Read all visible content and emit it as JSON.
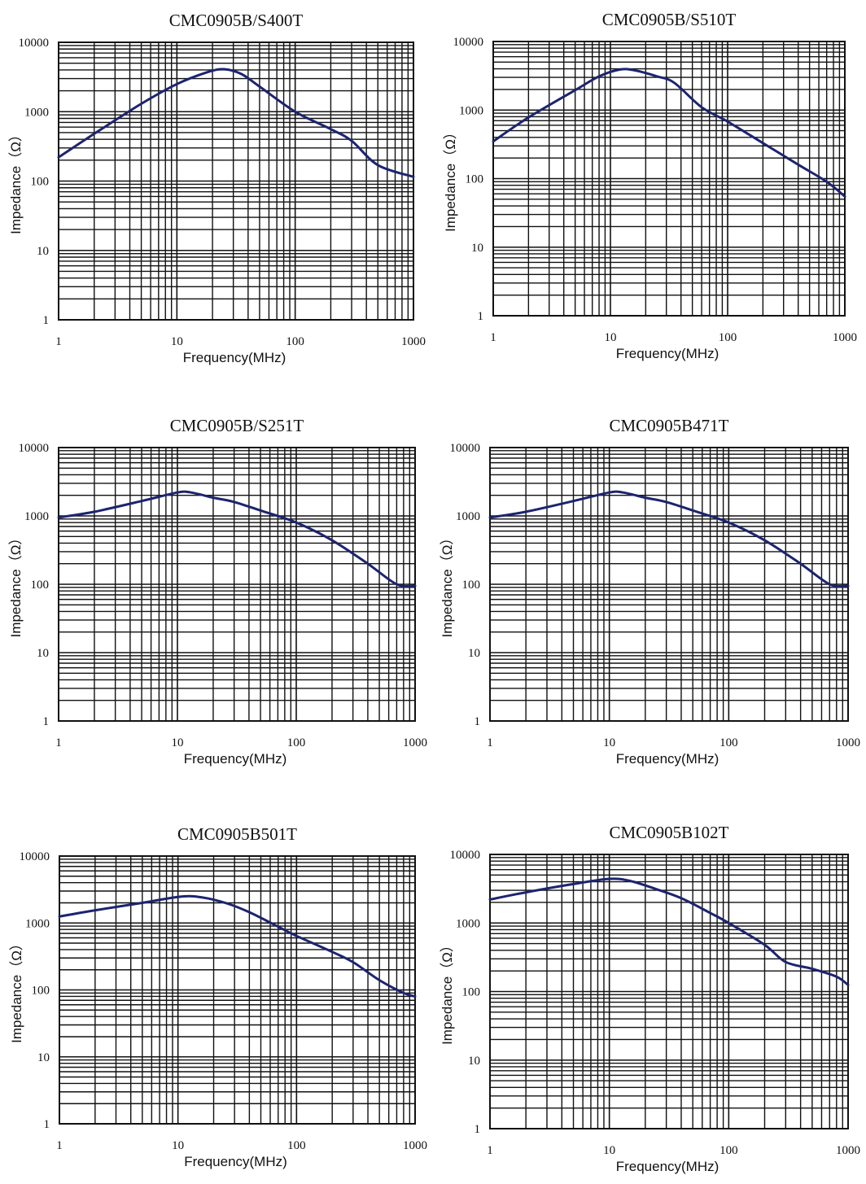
{
  "chart_data": [
    {
      "type": "line",
      "title": "CMC0905B/S400T",
      "xlabel": "Frequency(MHz)",
      "ylabel": "Impedance（Ω）",
      "xscale": "log",
      "yscale": "log",
      "xlim": [
        1,
        1000
      ],
      "ylim": [
        1,
        10000
      ],
      "xticks": [
        "1",
        "10",
        "100",
        "1000"
      ],
      "yticks": [
        "1",
        "10",
        "100",
        "1000",
        "10000"
      ],
      "grid": true,
      "line_color": "#1c2470",
      "x": [
        1,
        2,
        5,
        10,
        18,
        25,
        35,
        50,
        100,
        200,
        300,
        500,
        1000
      ],
      "y": [
        220,
        480,
        1300,
        2500,
        3700,
        4100,
        3500,
        2300,
        1000,
        560,
        380,
        170,
        115
      ]
    },
    {
      "type": "line",
      "title": "CMC0905B/S510T",
      "xlabel": "Frequency(MHz)",
      "ylabel": "Impedance（Ω）",
      "xscale": "log",
      "yscale": "log",
      "xlim": [
        1,
        1000
      ],
      "ylim": [
        1,
        10000
      ],
      "xticks": [
        "1",
        "10",
        "100",
        "1000"
      ],
      "yticks": [
        "1",
        "10",
        "100",
        "1000",
        "10000"
      ],
      "grid": true,
      "line_color": "#1c2470",
      "x": [
        1,
        2,
        5,
        8,
        12,
        16,
        25,
        35,
        60,
        100,
        200,
        400,
        700,
        1000
      ],
      "y": [
        350,
        780,
        1950,
        3100,
        3900,
        3800,
        3100,
        2500,
        1100,
        680,
        330,
        160,
        90,
        55
      ]
    },
    {
      "type": "line",
      "title": "CMC0905B/S251T",
      "xlabel": "Frequency(MHz)",
      "ylabel": "Impedance（Ω）",
      "xscale": "log",
      "yscale": "log",
      "xlim": [
        1,
        1000
      ],
      "ylim": [
        1,
        10000
      ],
      "xticks": [
        "1",
        "10",
        "100",
        "1000"
      ],
      "yticks": [
        "1",
        "10",
        "100",
        "1000",
        "10000"
      ],
      "grid": true,
      "line_color": "#1c2470",
      "x": [
        1,
        2,
        5,
        10,
        13,
        20,
        30,
        50,
        100,
        200,
        400,
        700,
        1000
      ],
      "y": [
        950,
        1150,
        1650,
        2200,
        2200,
        1850,
        1600,
        1200,
        800,
        440,
        200,
        100,
        95
      ]
    },
    {
      "type": "line",
      "title": "CMC0905B471T",
      "xlabel": "Frequency(MHz)",
      "ylabel": "Impedance（Ω）",
      "xscale": "log",
      "yscale": "log",
      "xlim": [
        1,
        1000
      ],
      "ylim": [
        1,
        10000
      ],
      "xticks": [
        "1",
        "10",
        "100",
        "1000"
      ],
      "yticks": [
        "1",
        "10",
        "100",
        "1000",
        "10000"
      ],
      "grid": true,
      "line_color": "#1c2470",
      "x": [
        1,
        2,
        5,
        10,
        13,
        20,
        30,
        50,
        100,
        200,
        400,
        700,
        1000
      ],
      "y": [
        950,
        1150,
        1650,
        2200,
        2200,
        1850,
        1600,
        1200,
        800,
        440,
        200,
        100,
        95
      ]
    },
    {
      "type": "line",
      "title": "CMC0905B501T",
      "xlabel": "Frequency(MHz)",
      "ylabel": "Impedance（Ω）",
      "xscale": "log",
      "yscale": "log",
      "xlim": [
        1,
        1000
      ],
      "ylim": [
        1,
        10000
      ],
      "xticks": [
        "1",
        "10",
        "100",
        "1000"
      ],
      "yticks": [
        "1",
        "10",
        "100",
        "1000",
        "10000"
      ],
      "grid": true,
      "line_color": "#1c2470",
      "x": [
        1,
        2,
        5,
        10,
        15,
        25,
        40,
        70,
        100,
        200,
        300,
        500,
        800,
        1000
      ],
      "y": [
        1250,
        1550,
        2000,
        2450,
        2450,
        2000,
        1450,
        880,
        640,
        370,
        260,
        140,
        90,
        80
      ]
    },
    {
      "type": "line",
      "title": "CMC0905B102T",
      "xlabel": "Frequency(MHz)",
      "ylabel": "Impedance（Ω）",
      "xscale": "log",
      "yscale": "log",
      "xlim": [
        1,
        1000
      ],
      "ylim": [
        1,
        10000
      ],
      "xticks": [
        "1",
        "10",
        "100",
        "1000"
      ],
      "yticks": [
        "1",
        "10",
        "100",
        "1000",
        "10000"
      ],
      "grid": true,
      "line_color": "#1c2470",
      "x": [
        1,
        2,
        5,
        10,
        15,
        25,
        40,
        70,
        100,
        200,
        300,
        500,
        800,
        1000
      ],
      "y": [
        2200,
        2800,
        3700,
        4400,
        4100,
        3100,
        2300,
        1400,
        1000,
        480,
        270,
        215,
        165,
        125
      ]
    }
  ]
}
